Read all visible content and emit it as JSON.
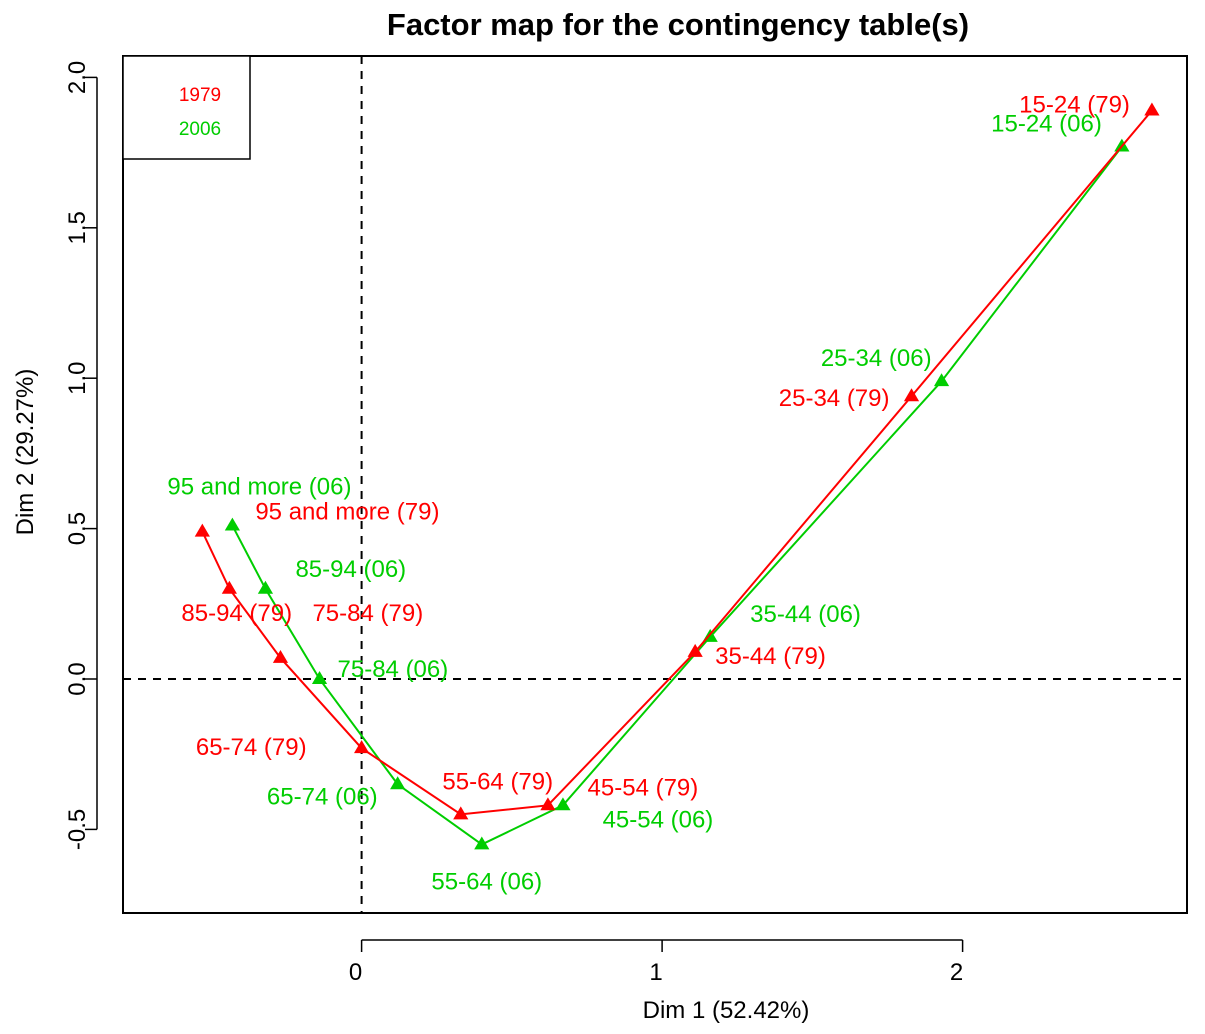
{
  "chart_data": {
    "type": "scatter",
    "title": "Factor map for the contingency table(s)",
    "xlabel": "Dim 1 (52.42%)",
    "ylabel": "Dim 2 (29.27%)",
    "xlim": [
      -0.79,
      2.75
    ],
    "ylim": [
      -0.78,
      2.02
    ],
    "x_ticks": [
      0,
      1,
      2
    ],
    "x_tick_labels": [
      "0",
      "1",
      "2"
    ],
    "y_ticks": [
      -0.5,
      0.0,
      0.5,
      1.0,
      1.5,
      2.0
    ],
    "y_tick_labels": [
      "-0.5",
      "0.0",
      "0.5",
      "1.0",
      "1.5",
      "2.0"
    ],
    "reference_lines": {
      "x": 0,
      "y": 0,
      "style": "dashed"
    },
    "legend": {
      "position": "top-left",
      "entries": [
        {
          "name": "1979",
          "color": "#FF0000"
        },
        {
          "name": "2006",
          "color": "#00CD00"
        }
      ]
    },
    "series": [
      {
        "name": "1979",
        "color": "#FF0000",
        "marker": "triangle",
        "points": [
          {
            "label": "15-24 (79)",
            "x": 2.63,
            "y": 1.89
          },
          {
            "label": "25-34 (79)",
            "x": 1.83,
            "y": 0.94
          },
          {
            "label": "35-44 (79)",
            "x": 1.11,
            "y": 0.09
          },
          {
            "label": "45-54 (79)",
            "x": 0.62,
            "y": -0.42
          },
          {
            "label": "55-64 (79)",
            "x": 0.33,
            "y": -0.45
          },
          {
            "label": "65-74 (79)",
            "x": 0.0,
            "y": -0.23
          },
          {
            "label": "75-84 (79)",
            "x": -0.27,
            "y": 0.07
          },
          {
            "label": "85-94 (79)",
            "x": -0.44,
            "y": 0.3
          },
          {
            "label": "95 and more (79)",
            "x": -0.53,
            "y": 0.49
          }
        ]
      },
      {
        "name": "2006",
        "color": "#00CD00",
        "marker": "triangle",
        "points": [
          {
            "label": "15-24 (06)",
            "x": 2.53,
            "y": 1.77
          },
          {
            "label": "25-34 (06)",
            "x": 1.93,
            "y": 0.99
          },
          {
            "label": "35-44 (06)",
            "x": 1.16,
            "y": 0.14
          },
          {
            "label": "45-54 (06)",
            "x": 0.67,
            "y": -0.42
          },
          {
            "label": "55-64 (06)",
            "x": 0.4,
            "y": -0.55
          },
          {
            "label": "65-74 (06)",
            "x": 0.12,
            "y": -0.35
          },
          {
            "label": "75-84 (06)",
            "x": -0.14,
            "y": 0.0
          },
          {
            "label": "85-94 (06)",
            "x": -0.32,
            "y": 0.3
          },
          {
            "label": "95 and more (06)",
            "x": -0.43,
            "y": 0.51
          }
        ]
      }
    ]
  }
}
